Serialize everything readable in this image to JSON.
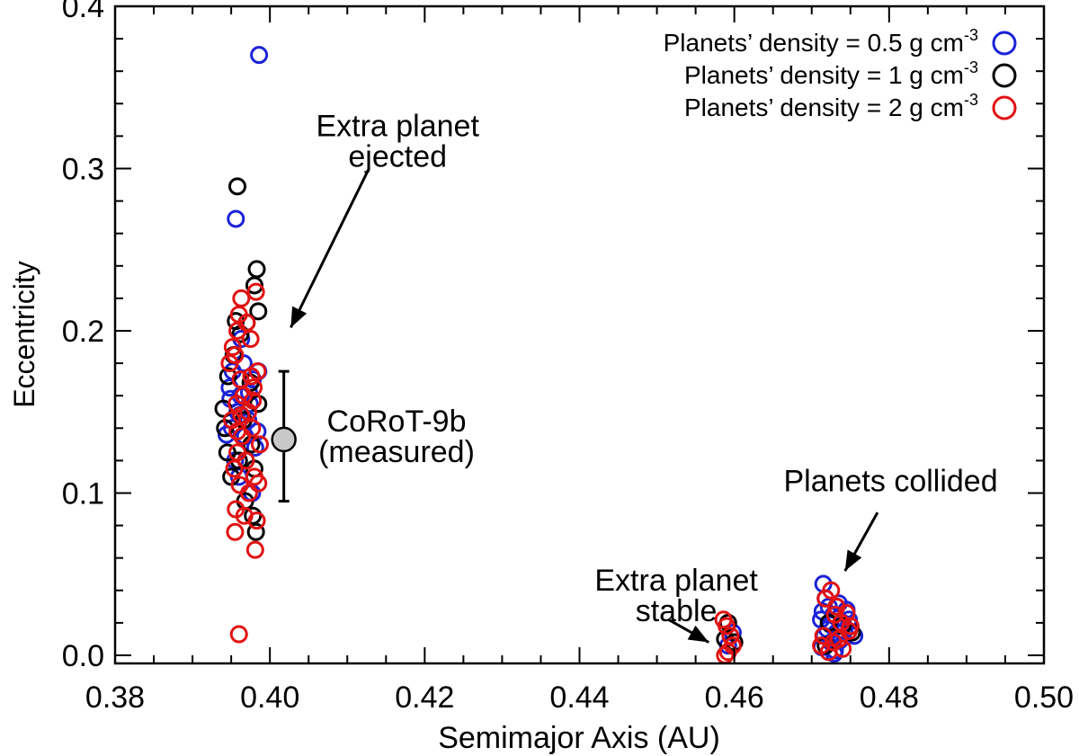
{
  "chart_data": {
    "type": "scatter",
    "title": "",
    "xlabel": "Semimajor Axis (AU)",
    "ylabel": "Eccentricity",
    "xlim": [
      0.38,
      0.5
    ],
    "ylim": [
      -0.005,
      0.4
    ],
    "x_ticks": [
      "0.38",
      "0.40",
      "0.42",
      "0.44",
      "0.46",
      "0.48",
      "0.50"
    ],
    "y_ticks": [
      "0.0",
      "0.1",
      "0.2",
      "0.3",
      "0.4"
    ],
    "grid": false,
    "legend_position": "top-right",
    "legend": [
      {
        "label": "Planets’ density = 0.5 g cm",
        "sup": "-3",
        "color": "#1a22d6"
      },
      {
        "label": "Planets’ density = 1 g cm",
        "sup": "-3",
        "color": "#000000"
      },
      {
        "label": "Planets’ density = 2 g cm",
        "sup": "-3",
        "color": "#e01212"
      }
    ],
    "series": [
      {
        "name": "Planets’ density = 0.5 g cm-3",
        "color": "#1a22d6",
        "x": [
          0.3986,
          0.3956,
          0.3952,
          0.3978,
          0.3948,
          0.3962,
          0.3958,
          0.3972,
          0.3951,
          0.3968,
          0.3985,
          0.3974,
          0.3944,
          0.3981,
          0.3963,
          0.3955,
          0.3977,
          0.3966,
          0.3973,
          0.3961,
          0.3949,
          0.3984,
          0.396,
          0.4715,
          0.4718,
          0.4722,
          0.4735,
          0.4745,
          0.4728,
          0.4712,
          0.474,
          0.475,
          0.472,
          0.4732,
          0.4716,
          0.4738,
          0.4725,
          0.4742,
          0.4713,
          0.4755,
          0.473,
          0.4748,
          0.4714,
          0.4724,
          0.4736,
          0.4729,
          0.4598,
          0.4592
        ],
        "y": [
          0.37,
          0.269,
          0.175,
          0.17,
          0.165,
          0.16,
          0.15,
          0.145,
          0.14,
          0.135,
          0.175,
          0.155,
          0.136,
          0.128,
          0.195,
          0.12,
          0.1,
          0.18,
          0.162,
          0.148,
          0.158,
          0.138,
          0.11,
          0.044,
          0.035,
          0.03,
          0.032,
          0.028,
          0.025,
          0.022,
          0.02,
          0.018,
          0.016,
          0.014,
          0.012,
          0.01,
          0.008,
          0.015,
          0.005,
          0.012,
          0.003,
          0.022,
          0.027,
          0.019,
          0.009,
          0.001,
          0.014,
          0.006
        ]
      },
      {
        "name": "Planets’ density = 1 g cm-3",
        "color": "#000000",
        "x": [
          0.3958,
          0.3983,
          0.398,
          0.394,
          0.3942,
          0.3945,
          0.395,
          0.3982,
          0.3978,
          0.3956,
          0.3985,
          0.397,
          0.3962,
          0.3953,
          0.3975,
          0.3966,
          0.3946,
          0.3968,
          0.396,
          0.398,
          0.3976,
          0.3985,
          0.4588,
          0.4592,
          0.46,
          0.4722,
          0.474,
          0.4752,
          0.4718,
          0.4732
        ],
        "y": [
          0.289,
          0.238,
          0.228,
          0.152,
          0.14,
          0.125,
          0.11,
          0.076,
          0.086,
          0.206,
          0.212,
          0.205,
          0.198,
          0.185,
          0.168,
          0.145,
          0.172,
          0.095,
          0.12,
          0.115,
          0.13,
          0.155,
          0.01,
          0.02,
          0.008,
          0.02,
          0.018,
          0.014,
          0.006,
          0.03
        ]
      },
      {
        "name": "Planets’ density = 2 g cm-3",
        "color": "#e01212",
        "x": [
          0.3963,
          0.3982,
          0.396,
          0.397,
          0.3958,
          0.3952,
          0.3948,
          0.3975,
          0.3955,
          0.3984,
          0.3962,
          0.3979,
          0.3966,
          0.3957,
          0.3972,
          0.3951,
          0.3977,
          0.3964,
          0.3987,
          0.3958,
          0.3969,
          0.3954,
          0.398,
          0.3961,
          0.3973,
          0.3956,
          0.3983,
          0.3967,
          0.3955,
          0.3981,
          0.396,
          0.3978,
          0.3958,
          0.3976,
          0.3985,
          0.3963,
          0.4586,
          0.459,
          0.4595,
          0.4598,
          0.4592,
          0.4588,
          0.4725,
          0.4718,
          0.4732,
          0.4745,
          0.4738,
          0.475,
          0.4715,
          0.4728,
          0.474,
          0.4722,
          0.4748,
          0.4735,
          0.4712,
          0.473
        ],
        "y": [
          0.22,
          0.224,
          0.21,
          0.205,
          0.2,
          0.19,
          0.18,
          0.195,
          0.185,
          0.175,
          0.17,
          0.165,
          0.16,
          0.155,
          0.15,
          0.145,
          0.14,
          0.135,
          0.13,
          0.125,
          0.12,
          0.115,
          0.11,
          0.105,
          0.1,
          0.09,
          0.083,
          0.086,
          0.076,
          0.065,
          0.013,
          0.157,
          0.138,
          0.172,
          0.106,
          0.148,
          0.022,
          0.018,
          0.012,
          0.006,
          0.002,
          0.0,
          0.04,
          0.035,
          0.03,
          0.026,
          0.02,
          0.018,
          0.012,
          0.008,
          0.004,
          0.002,
          0.015,
          0.01,
          0.006,
          0.025
        ]
      }
    ],
    "measured_point": {
      "label_line1": "CoRoT-9b",
      "label_line2": "(measured)",
      "x": 0.4018,
      "y": 0.133,
      "y_err_low": 0.095,
      "y_err_high": 0.175
    },
    "annotations": [
      {
        "lines": [
          "Extra planet",
          "ejected"
        ],
        "text_x": 0.4165,
        "text_y": 0.32,
        "arrow_from": [
          0.4128,
          0.3
        ],
        "arrow_to": [
          0.4027,
          0.202
        ]
      },
      {
        "lines": [
          "Planets collided"
        ],
        "text_x": 0.4802,
        "text_y": 0.101,
        "arrow_from": [
          0.4785,
          0.088
        ],
        "arrow_to": [
          0.4743,
          0.052
        ]
      },
      {
        "lines": [
          "Extra planet",
          "stable"
        ],
        "text_x": 0.4525,
        "text_y": 0.04,
        "arrow_from": [
          0.4515,
          0.022
        ],
        "arrow_to": [
          0.4567,
          0.008
        ]
      }
    ]
  }
}
